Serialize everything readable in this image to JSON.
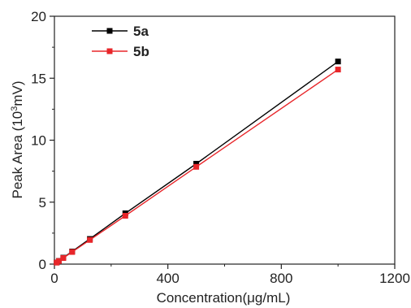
{
  "chart_data": {
    "type": "line",
    "xlabel": "Concentration(μg/mL)",
    "ylabel_main": "Peak Area (10",
    "ylabel_sup": "3",
    "ylabel_tail": "mV)",
    "xlim": [
      0,
      1200
    ],
    "ylim": [
      0,
      20
    ],
    "x_ticks": [
      "0",
      "400",
      "800",
      "1200"
    ],
    "x_tick_values": [
      0,
      400,
      800,
      1200
    ],
    "y_ticks": [
      "0",
      "5",
      "10",
      "15",
      "20"
    ],
    "y_tick_values": [
      0,
      5,
      10,
      15,
      20
    ],
    "grid": false,
    "legend_position": "top-left",
    "series": [
      {
        "name": "5a",
        "color": "#000000",
        "x": [
          7.8,
          15.6,
          31.25,
          62.5,
          125,
          250,
          500,
          1000
        ],
        "y": [
          0.13,
          0.26,
          0.52,
          1.02,
          2.03,
          4.1,
          8.1,
          16.35
        ]
      },
      {
        "name": "5b",
        "color": "#e8262a",
        "x": [
          7.8,
          15.6,
          31.25,
          62.5,
          125,
          250,
          500,
          1000
        ],
        "y": [
          0.12,
          0.25,
          0.49,
          0.98,
          1.95,
          3.9,
          7.85,
          15.7
        ]
      }
    ]
  }
}
